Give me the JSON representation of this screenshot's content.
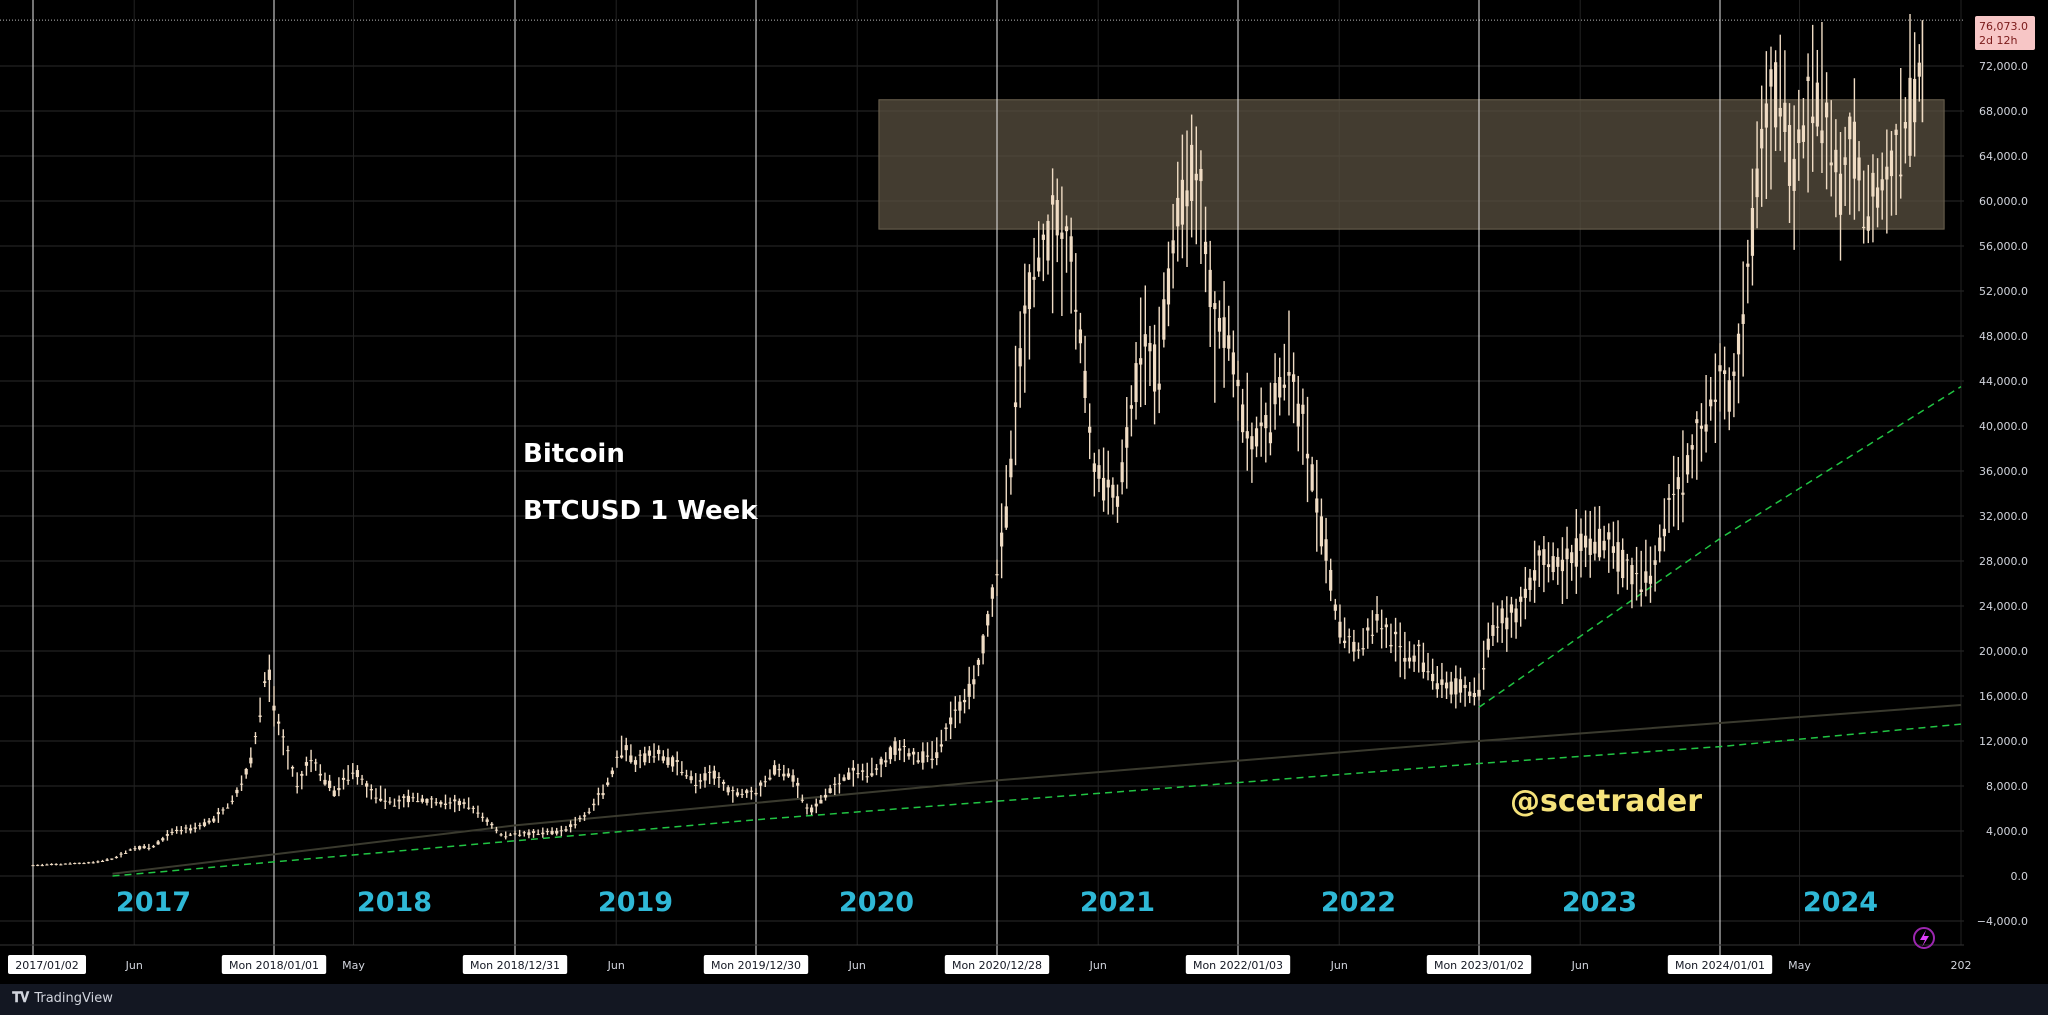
{
  "app": {
    "brand": "TradingView",
    "logo": "tradingview-logo-icon"
  },
  "colors": {
    "background": "#000000",
    "candle": "#f0dcc4",
    "year_label": "#2fb8d6",
    "trend": "#21c443",
    "zone": "#5a5040",
    "price_badge": "#f7c6c6",
    "watermark": "#f5e27a"
  },
  "chart_data": {
    "type": "candlestick",
    "title": "Bitcoin",
    "subtitle": "BTCUSD 1 Week",
    "watermark": "@scetrader",
    "ylim": [
      -6000,
      76073
    ],
    "y_tick_labels": [
      "−4,000.0",
      "0.0",
      "4,000.0",
      "8,000.0",
      "12,000.0",
      "16,000.0",
      "20,000.0",
      "24,000.0",
      "28,000.0",
      "32,000.0",
      "36,000.0",
      "40,000.0",
      "44,000.0",
      "48,000.0",
      "52,000.0",
      "56,000.0",
      "60,000.0",
      "64,000.0",
      "68,000.0",
      "72,000.0"
    ],
    "y_ticks": [
      -4000,
      0,
      4000,
      8000,
      12000,
      16000,
      20000,
      24000,
      28000,
      32000,
      36000,
      40000,
      44000,
      48000,
      52000,
      56000,
      60000,
      64000,
      68000,
      72000
    ],
    "last_price": "76,073.0",
    "countdown": "2d 12h",
    "time_labels": [
      {
        "t": 2017.0,
        "label": "2017/01/02",
        "boxed": true
      },
      {
        "t": 2017.42,
        "label": "Jun",
        "boxed": false
      },
      {
        "t": 2018.0,
        "label": "Mon 2018/01/01",
        "boxed": true
      },
      {
        "t": 2018.33,
        "label": "May",
        "boxed": false
      },
      {
        "t": 2019.0,
        "label": "Mon 2018/12/31",
        "boxed": true
      },
      {
        "t": 2019.42,
        "label": "Jun",
        "boxed": false
      },
      {
        "t": 2020.0,
        "label": "Mon 2019/12/30",
        "boxed": true
      },
      {
        "t": 2020.42,
        "label": "Jun",
        "boxed": false
      },
      {
        "t": 2021.0,
        "label": "Mon 2020/12/28",
        "boxed": true
      },
      {
        "t": 2021.42,
        "label": "Jun",
        "boxed": false
      },
      {
        "t": 2022.0,
        "label": "Mon 2022/01/03",
        "boxed": true
      },
      {
        "t": 2022.42,
        "label": "Jun",
        "boxed": false
      },
      {
        "t": 2023.0,
        "label": "Mon 2023/01/02",
        "boxed": true
      },
      {
        "t": 2023.42,
        "label": "Jun",
        "boxed": false
      },
      {
        "t": 2024.0,
        "label": "Mon 2024/01/01",
        "boxed": true
      },
      {
        "t": 2024.33,
        "label": "May",
        "boxed": false
      },
      {
        "t": 2025.0,
        "label": "202",
        "boxed": false
      }
    ],
    "year_annotations": [
      "2017",
      "2018",
      "2019",
      "2020",
      "2021",
      "2022",
      "2023",
      "2024"
    ],
    "year_lines": [
      2017.0,
      2018.0,
      2019.0,
      2020.0,
      2021.0,
      2022.0,
      2023.0,
      2024.0
    ],
    "resistance_zone": {
      "t0": 2020.51,
      "t1": 2024.93,
      "y0": 57500,
      "y1": 69000
    },
    "trendlines": [
      {
        "points": [
          [
            2017.33,
            0
          ],
          [
            2020.0,
            5000
          ],
          [
            2022.0,
            8300
          ],
          [
            2023.0,
            10000
          ],
          [
            2024.0,
            11500
          ],
          [
            2025.0,
            13500
          ]
        ]
      },
      {
        "points": [
          [
            2023.0,
            15000
          ],
          [
            2023.4,
            21000
          ],
          [
            2024.0,
            30000
          ],
          [
            2025.0,
            43500
          ]
        ]
      }
    ],
    "long_term_ma": [
      [
        2017.33,
        200
      ],
      [
        2019.0,
        4500
      ],
      [
        2021.0,
        8500
      ],
      [
        2023.0,
        12000
      ],
      [
        2025.0,
        15200
      ]
    ],
    "price_path": [
      [
        2017.0,
        950
      ],
      [
        2017.12,
        1050
      ],
      [
        2017.25,
        1200
      ],
      [
        2017.33,
        1500
      ],
      [
        2017.42,
        2500
      ],
      [
        2017.5,
        2600
      ],
      [
        2017.58,
        4000
      ],
      [
        2017.67,
        4300
      ],
      [
        2017.75,
        5000
      ],
      [
        2017.8,
        6000
      ],
      [
        2017.85,
        7500
      ],
      [
        2017.9,
        10000
      ],
      [
        2017.94,
        14000
      ],
      [
        2017.97,
        19000
      ],
      [
        2018.0,
        15000
      ],
      [
        2018.05,
        11000
      ],
      [
        2018.1,
        8000
      ],
      [
        2018.15,
        10500
      ],
      [
        2018.25,
        7500
      ],
      [
        2018.33,
        9500
      ],
      [
        2018.4,
        7500
      ],
      [
        2018.5,
        6500
      ],
      [
        2018.58,
        7000
      ],
      [
        2018.67,
        6500
      ],
      [
        2018.8,
        6400
      ],
      [
        2018.88,
        5000
      ],
      [
        2018.95,
        3500
      ],
      [
        2019.0,
        3800
      ],
      [
        2019.1,
        3800
      ],
      [
        2019.2,
        4000
      ],
      [
        2019.3,
        5500
      ],
      [
        2019.38,
        8000
      ],
      [
        2019.45,
        11500
      ],
      [
        2019.5,
        10000
      ],
      [
        2019.58,
        11000
      ],
      [
        2019.67,
        10000
      ],
      [
        2019.75,
        8300
      ],
      [
        2019.83,
        9000
      ],
      [
        2019.9,
        7300
      ],
      [
        2020.0,
        7500
      ],
      [
        2020.08,
        9500
      ],
      [
        2020.15,
        9000
      ],
      [
        2020.22,
        5500
      ],
      [
        2020.3,
        7500
      ],
      [
        2020.38,
        9000
      ],
      [
        2020.5,
        9500
      ],
      [
        2020.58,
        11500
      ],
      [
        2020.67,
        10500
      ],
      [
        2020.75,
        11000
      ],
      [
        2020.8,
        13500
      ],
      [
        2020.87,
        16000
      ],
      [
        2020.93,
        19000
      ],
      [
        2021.0,
        27000
      ],
      [
        2021.04,
        33000
      ],
      [
        2021.1,
        47000
      ],
      [
        2021.17,
        55000
      ],
      [
        2021.25,
        58000
      ],
      [
        2021.3,
        56000
      ],
      [
        2021.35,
        47000
      ],
      [
        2021.4,
        36000
      ],
      [
        2021.45,
        35000
      ],
      [
        2021.5,
        33000
      ],
      [
        2021.55,
        40000
      ],
      [
        2021.6,
        47000
      ],
      [
        2021.67,
        45000
      ],
      [
        2021.72,
        55000
      ],
      [
        2021.8,
        63000
      ],
      [
        2021.85,
        60000
      ],
      [
        2021.9,
        48000
      ],
      [
        2021.95,
        50000
      ],
      [
        2022.0,
        43000
      ],
      [
        2022.05,
        38000
      ],
      [
        2022.12,
        40000
      ],
      [
        2022.2,
        45000
      ],
      [
        2022.28,
        39000
      ],
      [
        2022.35,
        30000
      ],
      [
        2022.42,
        22000
      ],
      [
        2022.5,
        20000
      ],
      [
        2022.58,
        23000
      ],
      [
        2022.67,
        20000
      ],
      [
        2022.75,
        19500
      ],
      [
        2022.85,
        17000
      ],
      [
        2022.95,
        16500
      ],
      [
        2023.0,
        16700
      ],
      [
        2023.05,
        22000
      ],
      [
        2023.15,
        23000
      ],
      [
        2023.25,
        28000
      ],
      [
        2023.35,
        27500
      ],
      [
        2023.45,
        30000
      ],
      [
        2023.55,
        29500
      ],
      [
        2023.65,
        26000
      ],
      [
        2023.72,
        27000
      ],
      [
        2023.8,
        34000
      ],
      [
        2023.88,
        37000
      ],
      [
        2023.95,
        42000
      ],
      [
        2024.0,
        44000
      ],
      [
        2024.05,
        42000
      ],
      [
        2024.1,
        50000
      ],
      [
        2024.15,
        62000
      ],
      [
        2024.2,
        68000
      ],
      [
        2024.25,
        70000
      ],
      [
        2024.3,
        63000
      ],
      [
        2024.35,
        67000
      ],
      [
        2024.42,
        69000
      ],
      [
        2024.5,
        60000
      ],
      [
        2024.55,
        66000
      ],
      [
        2024.6,
        59000
      ],
      [
        2024.67,
        62000
      ],
      [
        2024.72,
        63000
      ],
      [
        2024.78,
        67000
      ],
      [
        2024.82,
        69000
      ],
      [
        2024.84,
        76073
      ]
    ]
  }
}
